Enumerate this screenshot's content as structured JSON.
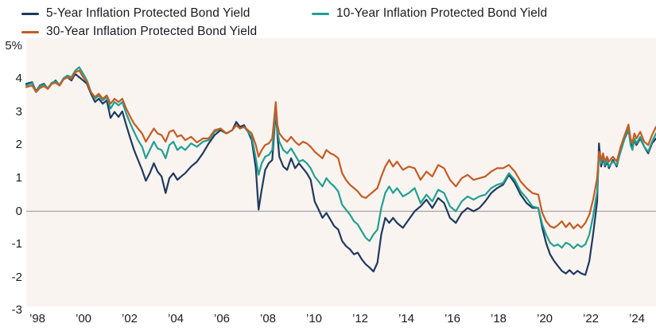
{
  "chart_data": {
    "type": "line",
    "title": "",
    "legend_position": "top-left",
    "grid": "zero-line-only",
    "plot_bg_color": "#faf4f1",
    "zero_line_color": "#a3a3a3",
    "ylim": [
      -3,
      5
    ],
    "xlim_years": [
      1998.25,
      2025.0
    ],
    "y_ticks": [
      {
        "label": "5%",
        "value": 5
      },
      {
        "label": "4",
        "value": 4
      },
      {
        "label": "3",
        "value": 3
      },
      {
        "label": "2",
        "value": 2
      },
      {
        "label": "1",
        "value": 1
      },
      {
        "label": "0",
        "value": 0
      },
      {
        "label": "-1",
        "value": -1
      },
      {
        "label": "-2",
        "value": -2
      },
      {
        "label": "-3",
        "value": -3
      }
    ],
    "x_tick_labels": [
      "’98",
      "’00",
      "’02",
      "’04",
      "’06",
      "’08",
      "’10",
      "’12",
      "’14",
      "’16",
      "’18",
      "’20",
      "’22",
      "’24"
    ],
    "x_years": [
      1998.25,
      1998.5,
      1998.67,
      1998.83,
      1999.0,
      1999.17,
      1999.33,
      1999.5,
      1999.67,
      1999.83,
      2000.0,
      2000.17,
      2000.33,
      2000.5,
      2000.67,
      2000.83,
      2001.0,
      2001.17,
      2001.33,
      2001.5,
      2001.67,
      2001.83,
      2002.0,
      2002.17,
      2002.33,
      2002.5,
      2002.67,
      2002.83,
      2003.0,
      2003.17,
      2003.33,
      2003.5,
      2003.67,
      2003.83,
      2004.0,
      2004.17,
      2004.33,
      2004.5,
      2004.67,
      2004.83,
      2005.0,
      2005.25,
      2005.5,
      2005.75,
      2006.0,
      2006.25,
      2006.5,
      2006.75,
      2007.0,
      2007.17,
      2007.33,
      2007.5,
      2007.67,
      2007.83,
      2008.0,
      2008.12,
      2008.25,
      2008.4,
      2008.55,
      2008.7,
      2008.85,
      2008.92,
      2009.0,
      2009.17,
      2009.33,
      2009.5,
      2009.67,
      2009.83,
      2010.0,
      2010.17,
      2010.33,
      2010.5,
      2010.67,
      2010.83,
      2011.0,
      2011.17,
      2011.33,
      2011.5,
      2011.67,
      2011.83,
      2012.0,
      2012.17,
      2012.33,
      2012.5,
      2012.67,
      2012.83,
      2013.0,
      2013.17,
      2013.33,
      2013.5,
      2013.67,
      2013.83,
      2014.0,
      2014.25,
      2014.5,
      2014.75,
      2015.0,
      2015.25,
      2015.5,
      2015.75,
      2016.0,
      2016.25,
      2016.5,
      2016.75,
      2017.0,
      2017.25,
      2017.5,
      2017.75,
      2018.0,
      2018.25,
      2018.5,
      2018.75,
      2019.0,
      2019.25,
      2019.5,
      2019.75,
      2020.0,
      2020.17,
      2020.33,
      2020.5,
      2020.67,
      2020.83,
      2021.0,
      2021.17,
      2021.33,
      2021.5,
      2021.67,
      2021.83,
      2022.0,
      2022.17,
      2022.33,
      2022.5,
      2022.58,
      2022.67,
      2022.75,
      2022.83,
      2022.92,
      2023.0,
      2023.17,
      2023.33,
      2023.5,
      2023.67,
      2023.83,
      2023.92,
      2024.0,
      2024.08,
      2024.17,
      2024.33,
      2024.5,
      2024.67,
      2024.83,
      2025.0
    ],
    "series": [
      {
        "id": "5-year",
        "name": "5-Year Inflation Protected Bond Yield",
        "color": "#1e3a5e",
        "values": [
          3.85,
          3.9,
          3.62,
          3.8,
          3.85,
          3.7,
          3.85,
          3.95,
          3.8,
          4.0,
          4.05,
          3.95,
          4.15,
          4.05,
          3.95,
          3.85,
          3.55,
          3.3,
          3.4,
          3.25,
          3.35,
          2.82,
          3.0,
          2.85,
          3.02,
          2.6,
          2.2,
          1.85,
          1.55,
          1.25,
          0.92,
          1.15,
          1.45,
          1.2,
          1.05,
          0.55,
          1.0,
          1.15,
          0.95,
          1.05,
          1.15,
          1.35,
          1.5,
          1.75,
          2.05,
          2.3,
          2.45,
          2.35,
          2.45,
          2.7,
          2.55,
          2.6,
          2.4,
          2.15,
          1.3,
          0.05,
          0.65,
          1.25,
          1.45,
          1.55,
          3.05,
          2.3,
          1.65,
          1.35,
          1.25,
          1.6,
          1.3,
          1.45,
          1.3,
          1.15,
          0.95,
          0.3,
          0.05,
          -0.2,
          -0.05,
          -0.25,
          -0.45,
          -0.55,
          -0.9,
          -1.05,
          -1.15,
          -1.3,
          -1.25,
          -1.45,
          -1.6,
          -1.7,
          -1.82,
          -1.55,
          -0.7,
          -0.2,
          -0.35,
          -0.2,
          -0.35,
          -0.5,
          -0.25,
          0.0,
          0.15,
          0.35,
          0.1,
          0.4,
          0.25,
          -0.2,
          -0.35,
          -0.05,
          0.1,
          0.0,
          0.1,
          0.3,
          0.55,
          0.7,
          0.8,
          1.1,
          0.85,
          0.5,
          0.25,
          0.1,
          0.1,
          -0.5,
          -0.95,
          -1.3,
          -1.5,
          -1.65,
          -1.8,
          -1.88,
          -1.78,
          -1.9,
          -1.8,
          -1.88,
          -1.92,
          -1.5,
          -0.7,
          0.3,
          2.05,
          1.35,
          1.6,
          1.35,
          1.5,
          1.3,
          1.55,
          1.35,
          1.85,
          2.2,
          2.45,
          2.1,
          1.9,
          2.15,
          2.0,
          2.2,
          1.95,
          1.75,
          2.05,
          2.2
        ]
      },
      {
        "id": "10-year",
        "name": "10-Year Inflation Protected Bond Yield",
        "color": "#21a091",
        "values": [
          3.8,
          3.87,
          3.6,
          3.78,
          3.82,
          3.72,
          3.88,
          3.92,
          3.82,
          4.02,
          4.1,
          4.05,
          4.25,
          4.35,
          4.15,
          3.95,
          3.6,
          3.4,
          3.5,
          3.35,
          3.45,
          3.1,
          3.3,
          3.2,
          3.3,
          2.95,
          2.65,
          2.4,
          2.15,
          1.95,
          1.6,
          1.85,
          2.1,
          1.9,
          1.85,
          1.6,
          2.0,
          2.1,
          1.85,
          1.95,
          1.85,
          2.05,
          1.95,
          2.1,
          2.15,
          2.4,
          2.5,
          2.35,
          2.45,
          2.6,
          2.5,
          2.55,
          2.4,
          2.25,
          1.6,
          1.1,
          1.45,
          1.65,
          1.7,
          1.85,
          3.15,
          2.4,
          2.1,
          1.85,
          1.75,
          1.9,
          1.7,
          1.5,
          1.55,
          1.45,
          1.3,
          1.05,
          0.9,
          0.75,
          1.0,
          0.85,
          0.75,
          0.6,
          0.2,
          0.05,
          -0.1,
          -0.3,
          -0.4,
          -0.6,
          -0.8,
          -0.9,
          -0.7,
          -0.55,
          0.1,
          0.55,
          0.75,
          0.55,
          0.7,
          0.45,
          0.55,
          0.7,
          0.25,
          0.5,
          0.3,
          0.65,
          0.55,
          0.15,
          0.0,
          0.3,
          0.45,
          0.35,
          0.45,
          0.5,
          0.7,
          0.8,
          0.85,
          1.15,
          0.95,
          0.6,
          0.4,
          0.15,
          0.1,
          -0.4,
          -0.7,
          -0.95,
          -1.05,
          -1.0,
          -1.1,
          -0.95,
          -1.0,
          -1.12,
          -1.0,
          -1.08,
          -1.0,
          -0.7,
          -0.15,
          0.6,
          1.75,
          1.45,
          1.65,
          1.4,
          1.55,
          1.35,
          1.5,
          1.4,
          1.8,
          2.2,
          2.5,
          2.0,
          1.85,
          2.2,
          2.05,
          2.25,
          1.95,
          1.8,
          2.1,
          2.35
        ]
      },
      {
        "id": "30-year",
        "name": "30-Year Inflation Protected Bond Yield",
        "color": "#c45c22",
        "values": [
          3.75,
          3.8,
          3.6,
          3.72,
          3.78,
          3.7,
          3.85,
          3.88,
          3.8,
          3.98,
          4.05,
          4.0,
          4.2,
          4.25,
          4.05,
          3.9,
          3.6,
          3.45,
          3.55,
          3.4,
          3.5,
          3.25,
          3.4,
          3.3,
          3.4,
          3.1,
          2.85,
          2.65,
          2.5,
          2.35,
          2.1,
          2.3,
          2.5,
          2.35,
          2.3,
          2.1,
          2.4,
          2.45,
          2.25,
          2.3,
          2.15,
          2.25,
          2.08,
          2.2,
          2.2,
          2.45,
          2.5,
          2.35,
          2.45,
          2.6,
          2.5,
          2.55,
          2.45,
          2.35,
          2.0,
          1.65,
          1.85,
          2.0,
          2.05,
          2.2,
          3.3,
          2.6,
          2.35,
          2.2,
          2.1,
          2.25,
          2.1,
          2.0,
          2.1,
          2.05,
          1.95,
          1.8,
          1.7,
          1.6,
          1.85,
          1.75,
          1.7,
          1.6,
          1.15,
          0.95,
          0.8,
          0.7,
          0.6,
          0.45,
          0.4,
          0.5,
          0.6,
          0.7,
          1.05,
          1.35,
          1.55,
          1.35,
          1.5,
          1.25,
          1.35,
          1.3,
          0.95,
          1.2,
          1.05,
          1.4,
          1.3,
          0.95,
          0.75,
          1.0,
          1.1,
          0.95,
          1.0,
          1.05,
          1.2,
          1.3,
          1.3,
          1.4,
          1.2,
          0.9,
          0.7,
          0.55,
          0.5,
          -0.05,
          -0.3,
          -0.45,
          -0.5,
          -0.42,
          -0.3,
          -0.48,
          -0.35,
          -0.52,
          -0.4,
          -0.5,
          -0.35,
          -0.1,
          0.35,
          1.0,
          1.8,
          1.55,
          1.75,
          1.5,
          1.65,
          1.5,
          1.65,
          1.5,
          1.95,
          2.3,
          2.62,
          2.2,
          2.05,
          2.35,
          2.2,
          2.4,
          2.1,
          2.0,
          2.3,
          2.55
        ]
      }
    ]
  }
}
